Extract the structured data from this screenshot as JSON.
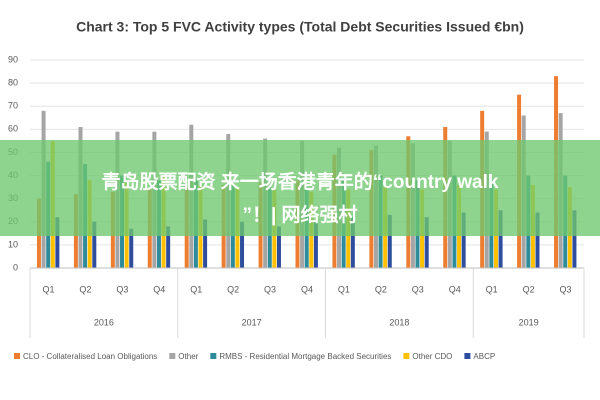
{
  "chart_data": {
    "type": "bar",
    "title": "Chart 3: Top 5 FVC Activity types (Total Debt Securities Issued €bn)",
    "categories": [
      "Q1",
      "Q2",
      "Q3",
      "Q4",
      "Q1",
      "Q2",
      "Q3",
      "Q4",
      "Q1",
      "Q2",
      "Q3",
      "Q4",
      "Q1",
      "Q2",
      "Q3"
    ],
    "category_years": [
      "2016",
      "2016",
      "2016",
      "2016",
      "2017",
      "2017",
      "2017",
      "2017",
      "2018",
      "2018",
      "2018",
      "2018",
      "2019",
      "2019",
      "2019"
    ],
    "series": [
      {
        "name": "CLO - Collateralised Loan Obligations",
        "color": "#ed7d31",
        "values": [
          30,
          32,
          33,
          34,
          35,
          36,
          37,
          38,
          49,
          51,
          57,
          61,
          68,
          75,
          83
        ]
      },
      {
        "name": "Other",
        "color": "#a5a5a5",
        "values": [
          68,
          61,
          59,
          59,
          62,
          58,
          56,
          55,
          52,
          53,
          54,
          55,
          59,
          66,
          67
        ]
      },
      {
        "name": "RMBS - Residential Mortgage Backed Securities",
        "color": "#2e8b9a",
        "values": [
          46,
          45,
          40,
          38,
          38,
          36,
          35,
          34,
          38,
          40,
          38,
          40,
          38,
          40,
          40
        ]
      },
      {
        "name": "Other CDO",
        "color": "#ffc000",
        "values": [
          55,
          38,
          38,
          40,
          36,
          35,
          34,
          33,
          34,
          35,
          34,
          36,
          34,
          36,
          35
        ]
      },
      {
        "name": "ABCP",
        "color": "#2f4d9e",
        "values": [
          22,
          20,
          17,
          18,
          21,
          20,
          18,
          20,
          22,
          23,
          22,
          24,
          25,
          24,
          25
        ]
      }
    ],
    "ylim": [
      0,
      90
    ],
    "yticks": [
      0,
      10,
      20,
      30,
      40,
      50,
      60,
      70,
      80,
      90
    ],
    "grid": true,
    "legend": "bottom"
  },
  "banner": {
    "lines": [
      "青岛股票配资 来一场香港青年的“country walk",
      "”！| 网络强村"
    ]
  }
}
